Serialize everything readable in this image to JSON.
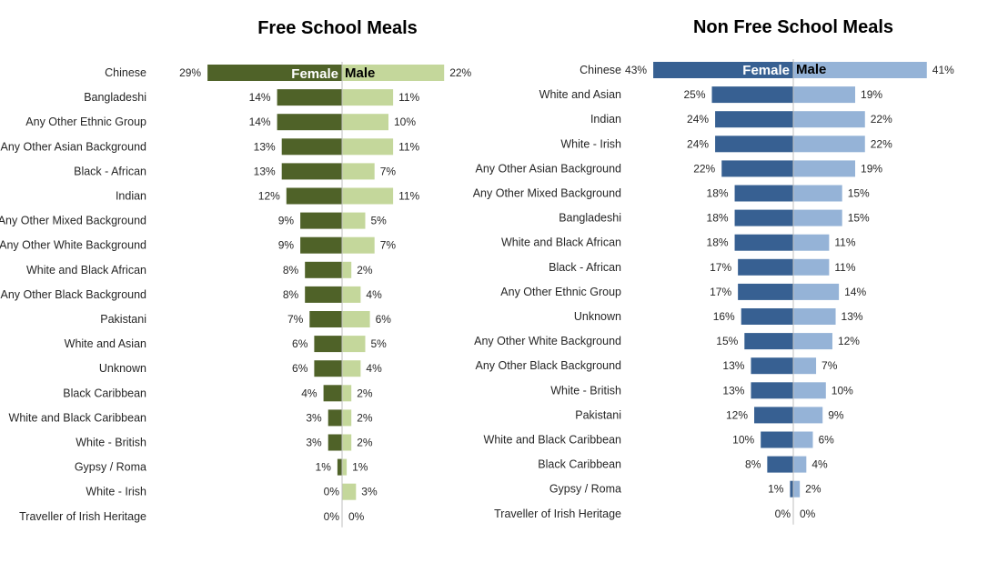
{
  "colors": {
    "fsm_female": "#4f6228",
    "fsm_male": "#c4d79b",
    "nfsm_female": "#376092",
    "nfsm_male": "#95b3d7",
    "axis": "#bfbfbf",
    "text": "#262626"
  },
  "chart_data": [
    {
      "type": "bar",
      "orientation": "horizontal",
      "layout": "diverging",
      "title": "Free School Meals",
      "legend_placement": "top-center",
      "grid": false,
      "xlim": [
        0,
        30
      ],
      "series": [
        {
          "name": "Female",
          "color": "#4f6228",
          "values": [
            29,
            14,
            14,
            13,
            13,
            12,
            9,
            9,
            8,
            8,
            7,
            6,
            6,
            4,
            3,
            3,
            1,
            0,
            0
          ],
          "labels": [
            "29%",
            "14%",
            "14%",
            "13%",
            "13%",
            "12%",
            "9%",
            "9%",
            "8%",
            "8%",
            "7%",
            "6%",
            "6%",
            "4%",
            "3%",
            "3%",
            "1%",
            "0%",
            "0%"
          ]
        },
        {
          "name": "Male",
          "color": "#c4d79b",
          "values": [
            22,
            11,
            10,
            11,
            7,
            11,
            5,
            7,
            2,
            4,
            6,
            5,
            4,
            2,
            2,
            2,
            1,
            3,
            0
          ],
          "labels": [
            "22%",
            "11%",
            "10%",
            "11%",
            "7%",
            "11%",
            "5%",
            "7%",
            "2%",
            "4%",
            "6%",
            "5%",
            "4%",
            "2%",
            "2%",
            "2%",
            "1%",
            "3%",
            "0%"
          ]
        }
      ],
      "categories": [
        "Chinese",
        "Bangladeshi",
        "Any Other Ethnic Group",
        "Any Other Asian Background",
        "Black - African",
        "Indian",
        "Any Other Mixed Background",
        "Any Other White Background",
        "White and Black African",
        "Any Other Black Background",
        "Pakistani",
        "White and Asian",
        "Unknown",
        "Black Caribbean",
        "White and Black Caribbean",
        "White - British",
        "Gypsy / Roma",
        "White - Irish",
        "Traveller of Irish Heritage"
      ]
    },
    {
      "type": "bar",
      "orientation": "horizontal",
      "layout": "diverging",
      "title": "Non Free School Meals",
      "legend_placement": "top-center",
      "grid": false,
      "xlim": [
        0,
        43
      ],
      "series": [
        {
          "name": "Female",
          "color": "#376092",
          "values": [
            43,
            25,
            24,
            24,
            22,
            18,
            18,
            18,
            17,
            17,
            16,
            15,
            13,
            13,
            12,
            10,
            8,
            1,
            0
          ],
          "labels": [
            "43%",
            "25%",
            "24%",
            "24%",
            "22%",
            "18%",
            "18%",
            "18%",
            "17%",
            "17%",
            "16%",
            "15%",
            "13%",
            "13%",
            "12%",
            "10%",
            "8%",
            "1%",
            "0%"
          ]
        },
        {
          "name": "Male",
          "color": "#95b3d7",
          "values": [
            41,
            19,
            22,
            22,
            19,
            15,
            15,
            11,
            11,
            14,
            13,
            12,
            7,
            10,
            9,
            6,
            4,
            2,
            0
          ],
          "labels": [
            "41%",
            "19%",
            "22%",
            "22%",
            "19%",
            "15%",
            "15%",
            "11%",
            "11%",
            "14%",
            "13%",
            "12%",
            "7%",
            "10%",
            "9%",
            "6%",
            "4%",
            "2%",
            "0%"
          ]
        }
      ],
      "categories": [
        "Chinese",
        "White and Asian",
        "Indian",
        "White - Irish",
        "Any Other Asian Background",
        "Any Other Mixed Background",
        "Bangladeshi",
        "White and Black African",
        "Black - African",
        "Any Other Ethnic Group",
        "Unknown",
        "Any Other White Background",
        "Any Other Black Background",
        "White - British",
        "Pakistani",
        "White and Black Caribbean",
        "Black Caribbean",
        "Gypsy / Roma",
        "Traveller of Irish Heritage"
      ]
    }
  ]
}
